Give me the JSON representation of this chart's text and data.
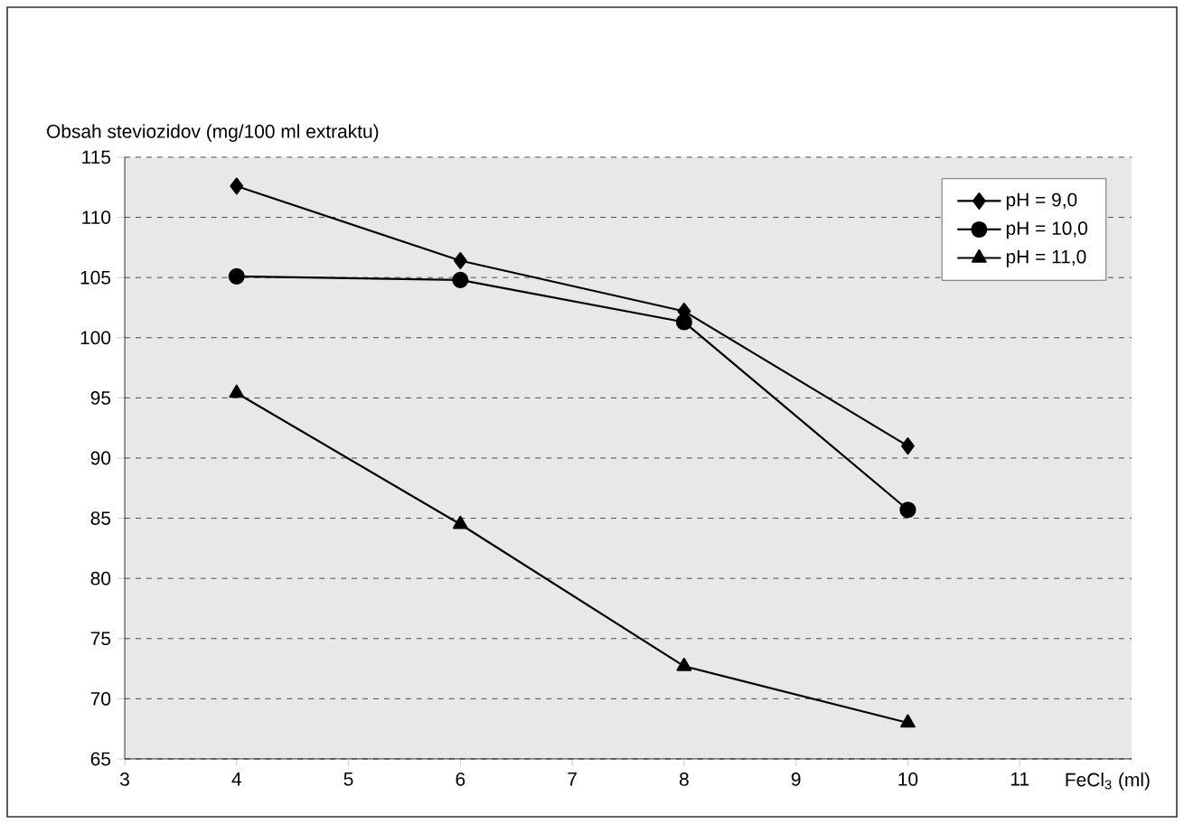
{
  "chart_data": {
    "type": "line",
    "xlabel": "FeCl$_{3}$ (ml)",
    "ylabel": "Obsah steviozidov (mg/100 ml extraktu)",
    "x": [
      4,
      6,
      8,
      10
    ],
    "series": [
      {
        "name": "pH = 9,0",
        "color": "#000000",
        "marker": "diamond",
        "values": [
          112.6,
          106.4,
          102.2,
          91.0
        ]
      },
      {
        "name": "pH = 10,0",
        "color": "#000000",
        "marker": "circle",
        "values": [
          105.1,
          104.8,
          101.3,
          85.7
        ]
      },
      {
        "name": "pH = 11,0",
        "color": "#000000",
        "marker": "triangle",
        "values": [
          95.4,
          84.5,
          72.7,
          68.0
        ]
      }
    ],
    "xlim": [
      3,
      12
    ],
    "xticks": [
      3,
      4,
      5,
      6,
      7,
      8,
      9,
      10,
      11
    ],
    "ylim": [
      65,
      115
    ],
    "yticks": [
      65,
      70,
      75,
      80,
      85,
      90,
      95,
      100,
      105,
      110,
      115
    ],
    "grid": "y",
    "legend": "top right",
    "line_style": "solid"
  }
}
